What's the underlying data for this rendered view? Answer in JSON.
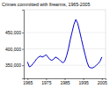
{
  "chart_data": {
    "type": "line",
    "title": "Crimes committed with firearms, 1965-2005",
    "x": [
      1965,
      1966,
      1967,
      1968,
      1969,
      1970,
      1971,
      1972,
      1973,
      1974,
      1975,
      1976,
      1977,
      1978,
      1979,
      1980,
      1981,
      1982,
      1983,
      1984,
      1985,
      1986,
      1987,
      1988,
      1989,
      1990,
      1991,
      1992,
      1993,
      1994,
      1995,
      1996,
      1997,
      1998,
      1999,
      2000,
      2001,
      2002,
      2003,
      2004,
      2005
    ],
    "values": [
      360000,
      345000,
      348000,
      355000,
      362000,
      370000,
      375000,
      378000,
      375000,
      378000,
      382000,
      375000,
      368000,
      365000,
      368000,
      375000,
      372000,
      368000,
      362000,
      358000,
      362000,
      378000,
      400000,
      428000,
      452000,
      475000,
      490000,
      478000,
      455000,
      430000,
      405000,
      382000,
      360000,
      345000,
      342000,
      342000,
      345000,
      350000,
      355000,
      362000,
      375000
    ],
    "color": "#0000cc",
    "xlim": [
      1963,
      2007
    ],
    "ylim": [
      310000,
      520000
    ],
    "xticks": [
      1965,
      1975,
      1985,
      1995,
      2005
    ],
    "yticks": [
      {
        "value": 350000,
        "label": "350,000"
      },
      {
        "value": 400000,
        "label": "400,000"
      },
      {
        "value": 450000,
        "label": "450,000"
      }
    ],
    "grid": true
  }
}
